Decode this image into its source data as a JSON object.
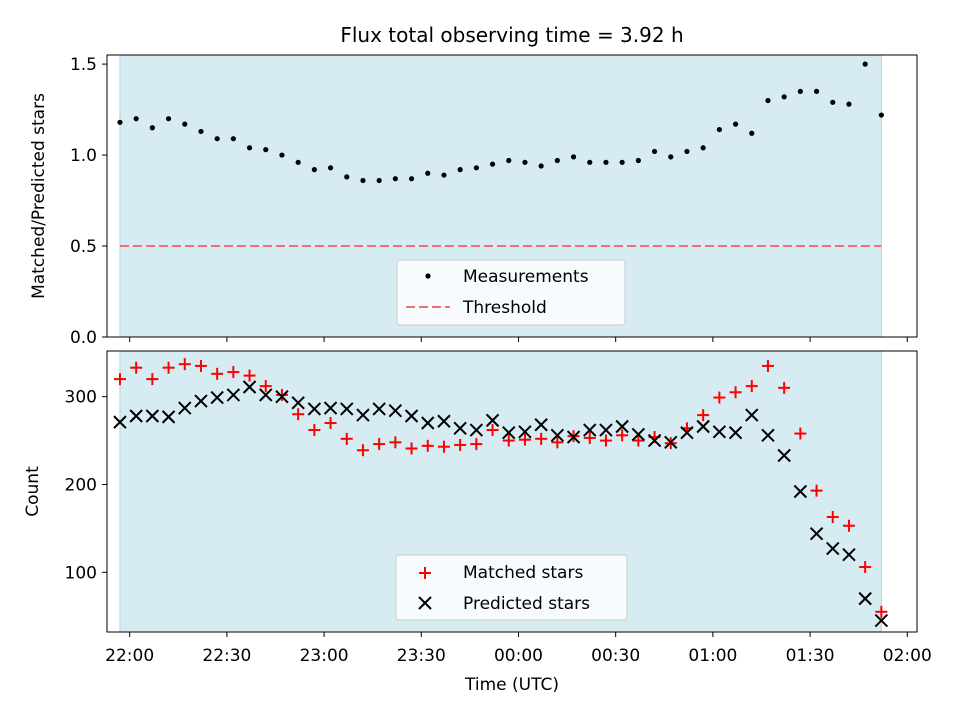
{
  "chart_data": [
    {
      "type": "scatter",
      "title": "Flux total observing time = 3.92 h",
      "xlabel": "",
      "ylabel": "Matched/Predicted stars",
      "xlim": [
        "21:53",
        "02:03"
      ],
      "ylim": [
        0,
        1.55
      ],
      "y_ticks": [
        "0.0",
        "0.5",
        "1.0",
        "1.5"
      ],
      "grid": false,
      "legend_position": "lower-center",
      "observing_window": [
        "21:57",
        "01:52"
      ],
      "observing_window_color": "#add8e6",
      "series": [
        {
          "name": "Measurements",
          "marker": "dot",
          "color": "#000000",
          "x": [
            "21:57",
            "22:02",
            "22:07",
            "22:12",
            "22:17",
            "22:22",
            "22:27",
            "22:32",
            "22:37",
            "22:42",
            "22:47",
            "22:52",
            "22:57",
            "23:02",
            "23:07",
            "23:12",
            "23:17",
            "23:22",
            "23:27",
            "23:32",
            "23:37",
            "23:42",
            "23:47",
            "23:52",
            "23:57",
            "00:02",
            "00:07",
            "00:12",
            "00:17",
            "00:22",
            "00:27",
            "00:32",
            "00:37",
            "00:42",
            "00:47",
            "00:52",
            "00:57",
            "01:02",
            "01:07",
            "01:12",
            "01:17",
            "01:22",
            "01:27",
            "01:32",
            "01:37",
            "01:42",
            "01:47",
            "01:52"
          ],
          "y": [
            1.18,
            1.2,
            1.15,
            1.2,
            1.17,
            1.13,
            1.09,
            1.09,
            1.04,
            1.03,
            1.0,
            0.96,
            0.92,
            0.93,
            0.88,
            0.86,
            0.86,
            0.87,
            0.87,
            0.9,
            0.89,
            0.92,
            0.93,
            0.95,
            0.97,
            0.96,
            0.94,
            0.97,
            0.99,
            0.96,
            0.96,
            0.96,
            0.97,
            1.02,
            0.99,
            1.02,
            1.04,
            1.14,
            1.17,
            1.12,
            1.3,
            1.32,
            1.35,
            1.35,
            1.29,
            1.28,
            1.5,
            1.22
          ]
        },
        {
          "name": "Threshold",
          "line_style": "dashed",
          "color": "#f07070",
          "x": [
            "21:57",
            "01:52"
          ],
          "y": [
            0.5,
            0.5
          ]
        }
      ]
    },
    {
      "type": "scatter",
      "title": "",
      "xlabel": "Time (UTC)",
      "ylabel": "Count",
      "xlim": [
        "21:53",
        "02:03"
      ],
      "ylim": [
        32,
        352
      ],
      "y_ticks": [
        "100",
        "200",
        "300"
      ],
      "x_ticks": [
        "22:00",
        "22:30",
        "23:00",
        "23:30",
        "00:00",
        "00:30",
        "01:00",
        "01:30",
        "02:00"
      ],
      "grid": false,
      "legend_position": "lower-center",
      "observing_window": [
        "21:57",
        "01:52"
      ],
      "series": [
        {
          "name": "Matched stars",
          "marker": "plus",
          "color": "#ff0000",
          "x": [
            "21:57",
            "22:02",
            "22:07",
            "22:12",
            "22:17",
            "22:22",
            "22:27",
            "22:32",
            "22:37",
            "22:42",
            "22:47",
            "22:52",
            "22:57",
            "23:02",
            "23:07",
            "23:12",
            "23:17",
            "23:22",
            "23:27",
            "23:32",
            "23:37",
            "23:42",
            "23:47",
            "23:52",
            "23:57",
            "00:02",
            "00:07",
            "00:12",
            "00:17",
            "00:22",
            "00:27",
            "00:32",
            "00:37",
            "00:42",
            "00:47",
            "00:52",
            "00:57",
            "01:02",
            "01:07",
            "01:12",
            "01:17",
            "01:22",
            "01:27",
            "01:32",
            "01:37",
            "01:42",
            "01:47",
            "01:52"
          ],
          "y": [
            320,
            333,
            320,
            333,
            337,
            335,
            326,
            328,
            324,
            312,
            302,
            280,
            262,
            270,
            252,
            239,
            246,
            248,
            241,
            244,
            243,
            245,
            246,
            262,
            250,
            251,
            252,
            248,
            255,
            253,
            250,
            256,
            250,
            254,
            247,
            264,
            279,
            299,
            305,
            312,
            335,
            310,
            258,
            193,
            163,
            153,
            106,
            55
          ]
        },
        {
          "name": "Predicted stars",
          "marker": "x",
          "color": "#000000",
          "x": [
            "21:57",
            "22:02",
            "22:07",
            "22:12",
            "22:17",
            "22:22",
            "22:27",
            "22:32",
            "22:37",
            "22:42",
            "22:47",
            "22:52",
            "22:57",
            "23:02",
            "23:07",
            "23:12",
            "23:17",
            "23:22",
            "23:27",
            "23:32",
            "23:37",
            "23:42",
            "23:47",
            "23:52",
            "23:57",
            "00:02",
            "00:07",
            "00:12",
            "00:17",
            "00:22",
            "00:27",
            "00:32",
            "00:37",
            "00:42",
            "00:47",
            "00:52",
            "00:57",
            "01:02",
            "01:07",
            "01:12",
            "01:17",
            "01:22",
            "01:27",
            "01:32",
            "01:37",
            "01:42",
            "01:47",
            "01:52"
          ],
          "y": [
            271,
            278,
            278,
            277,
            287,
            295,
            299,
            302,
            311,
            302,
            300,
            293,
            286,
            287,
            286,
            279,
            286,
            284,
            278,
            270,
            272,
            264,
            262,
            273,
            259,
            260,
            268,
            256,
            254,
            262,
            262,
            266,
            257,
            250,
            248,
            259,
            266,
            260,
            259,
            279,
            256,
            233,
            192,
            144,
            127,
            120,
            70,
            45
          ]
        }
      ]
    }
  ]
}
